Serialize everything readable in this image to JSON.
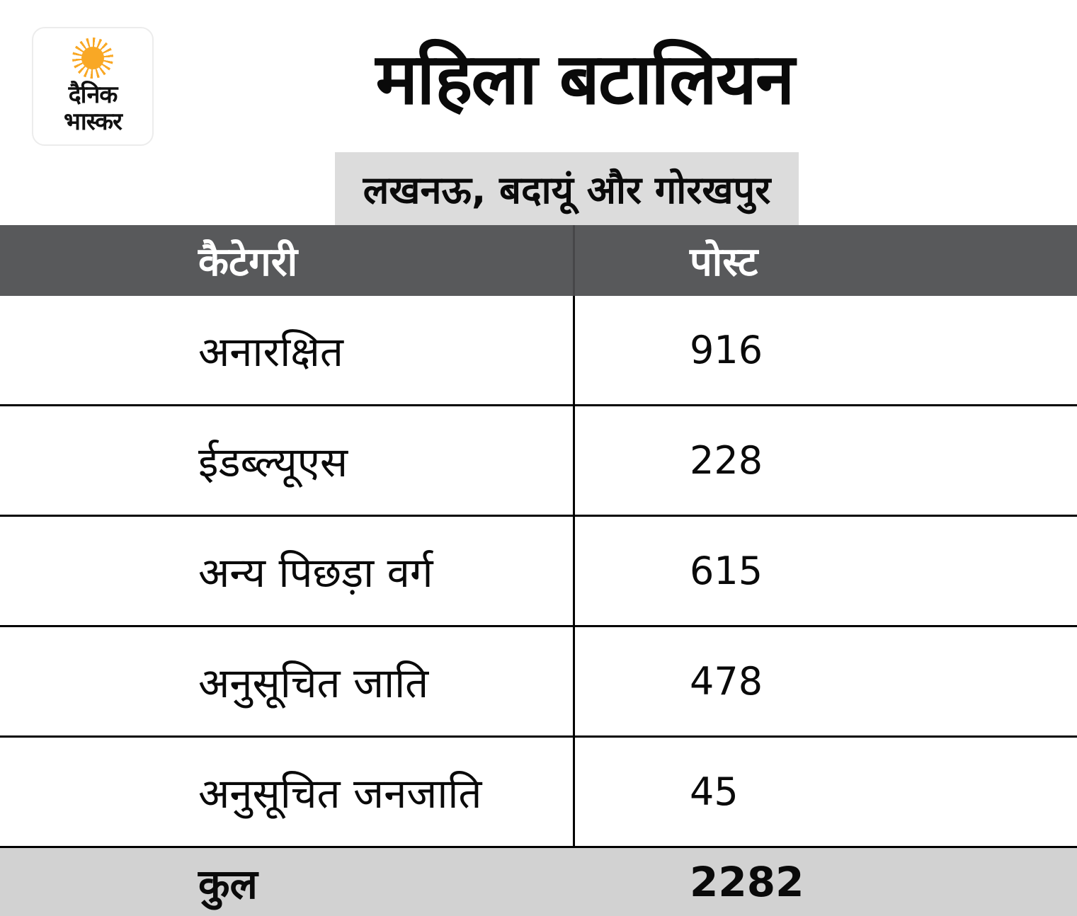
{
  "logo": {
    "name": "दैनिक भास्कर",
    "line1": "दैनिक",
    "line2": "भास्कर",
    "sun_color": "#f9a825"
  },
  "header": {
    "title": "महिला बटालियन",
    "subtitle": "लखनऊ, बदायूं और गोरखपुर"
  },
  "table": {
    "columns": [
      "कैटेगरी",
      "पोस्ट"
    ],
    "rows": [
      {
        "category": "अनारक्षित",
        "posts": "916"
      },
      {
        "category": "ईडब्ल्यूएस",
        "posts": "228"
      },
      {
        "category": "अन्य पिछड़ा वर्ग",
        "posts": "615"
      },
      {
        "category": "अनुसूचित जाति",
        "posts": "478"
      },
      {
        "category": "अनुसूचित जनजाति",
        "posts": "45"
      }
    ],
    "footer": {
      "label": "कुल",
      "value": "2282"
    }
  },
  "colors": {
    "header_row_bg": "#58595b",
    "subtitle_bg": "#dcdcdc",
    "footer_bg": "#d2d2d2",
    "accent_orange": "#f9a825",
    "text": "#0a0a0a"
  },
  "chart_data": {
    "type": "table",
    "title": "महिला बटालियन",
    "subtitle": "लखनऊ, बदायूं और गोरखपुर",
    "columns": [
      "कैटेगरी",
      "पोस्ट"
    ],
    "rows": [
      [
        "अनारक्षित",
        916
      ],
      [
        "ईडब्ल्यूएस",
        228
      ],
      [
        "अन्य पिछड़ा वर्ग",
        615
      ],
      [
        "अनुसूचित जाति",
        478
      ],
      [
        "अनुसूचित जनजाति",
        45
      ]
    ],
    "total_row": [
      "कुल",
      2282
    ]
  }
}
